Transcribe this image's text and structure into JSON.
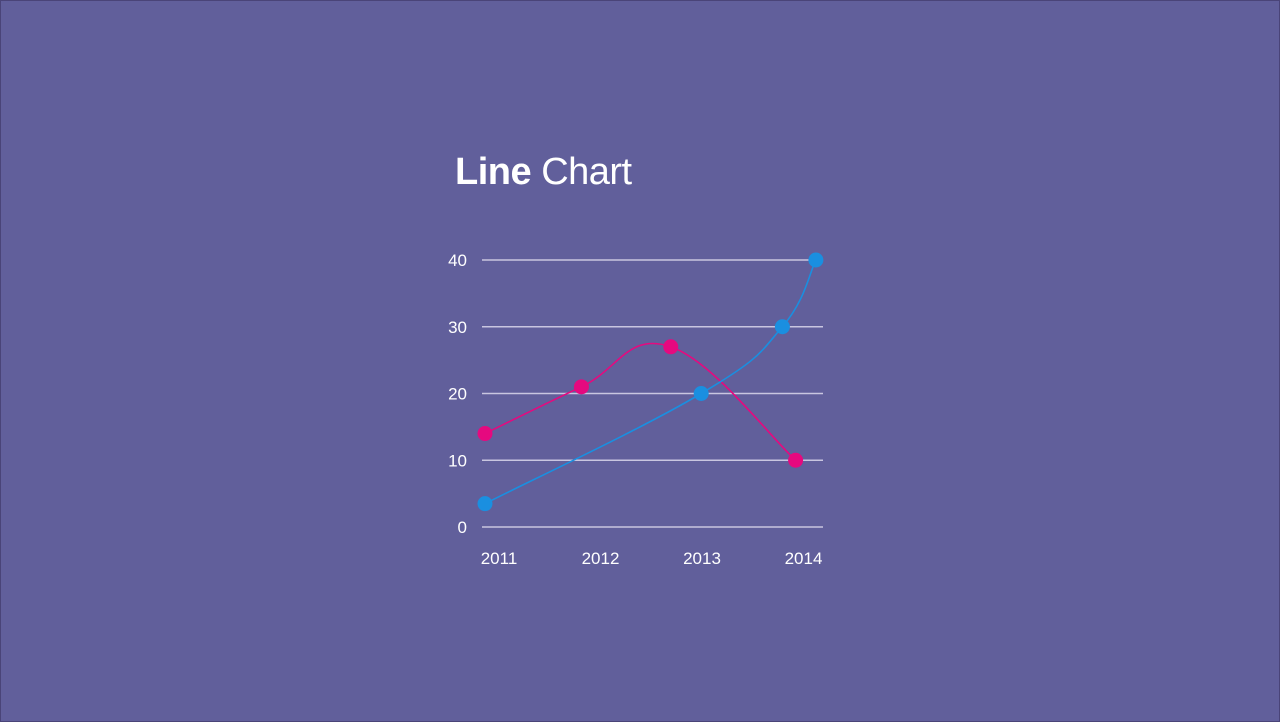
{
  "background": "#615f9b",
  "header": {
    "title_bold": "Line",
    "title_normal": "Chart"
  },
  "chart_data": {
    "type": "line",
    "x": [
      2011,
      2012,
      2013,
      2014
    ],
    "ylim": [
      0,
      40
    ],
    "yticks": [
      0,
      10,
      20,
      30,
      40
    ],
    "xticks": [
      "2011",
      "2012",
      "2013",
      "2014"
    ],
    "xlim": [
      2011,
      2014.3
    ],
    "grid": true,
    "legend": "none",
    "curve": "smooth",
    "series": [
      {
        "color": "#e6097f",
        "points": [
          {
            "x": 2011.0,
            "y": 14
          },
          {
            "x": 2011.95,
            "y": 21
          },
          {
            "x": 2012.83,
            "y": 27
          },
          {
            "x": 2014.06,
            "y": 10
          }
        ]
      },
      {
        "color": "#1a8fe0",
        "points": [
          {
            "x": 2011.0,
            "y": 3.5
          },
          {
            "x": 2013.13,
            "y": 20
          },
          {
            "x": 2013.93,
            "y": 30
          },
          {
            "x": 2014.26,
            "y": 40
          }
        ]
      }
    ]
  }
}
